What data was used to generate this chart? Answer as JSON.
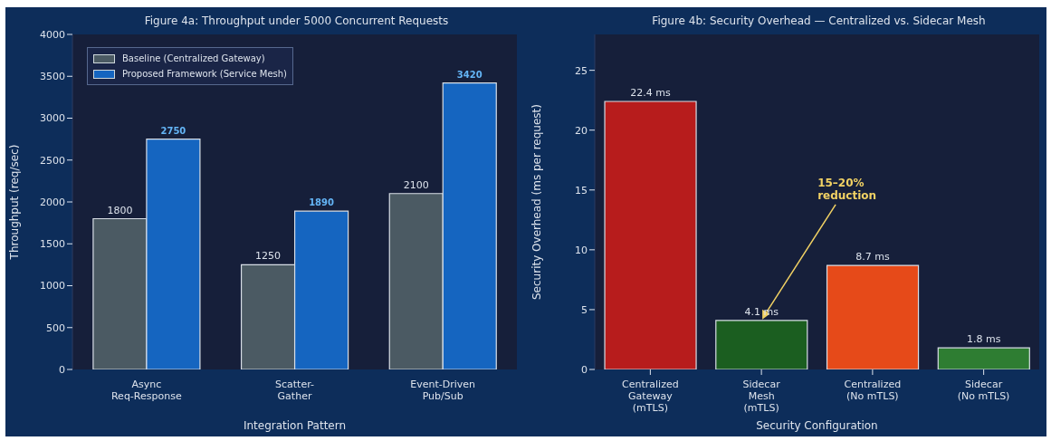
{
  "chart_data": [
    {
      "type": "bar",
      "title": "Figure 4a: Throughput under 5000 Concurrent Requests",
      "xlabel": "Integration Pattern",
      "ylabel": "Throughput (req/sec)",
      "categories": [
        "Async\nReq-Response",
        "Scatter-\nGather",
        "Event-Driven\nPub/Sub"
      ],
      "series": [
        {
          "name": "Baseline (Centralized Gateway)",
          "color": "#4b5a63",
          "values": [
            1800,
            1250,
            2100
          ]
        },
        {
          "name": "Proposed Framework (Service Mesh)",
          "color": "#1565c0",
          "values": [
            2750,
            1890,
            3420
          ]
        }
      ],
      "data_labels": true,
      "ylim": [
        0,
        4000
      ],
      "yticks": [
        0,
        500,
        1000,
        1500,
        2000,
        2500,
        3000,
        3500,
        4000
      ],
      "legend": "top left"
    },
    {
      "type": "bar",
      "title": "Figure 4b: Security Overhead — Centralized vs. Sidecar Mesh",
      "xlabel": "Security Configuration",
      "ylabel": "Security Overhead (ms per request)",
      "categories": [
        "Centralized\nGateway\n(mTLS)",
        "Sidecar\nMesh\n(mTLS)",
        "Centralized\n(No mTLS)",
        "Sidecar\n(No mTLS)"
      ],
      "values": [
        22.4,
        4.1,
        8.7,
        1.8
      ],
      "colors": [
        "#b71c1c",
        "#1b5e20",
        "#e64a19",
        "#2e7d32"
      ],
      "value_labels": [
        "22.4 ms",
        "4.1 ms",
        "8.7 ms",
        "1.8 ms"
      ],
      "annotations": [
        {
          "text": "15–20%\nreduction",
          "x": "Sidecar\nMesh\n(mTLS)",
          "y": 4.1
        }
      ],
      "ylim": [
        0,
        28
      ],
      "yticks": [
        0,
        5,
        10,
        15,
        20,
        25
      ]
    }
  ]
}
